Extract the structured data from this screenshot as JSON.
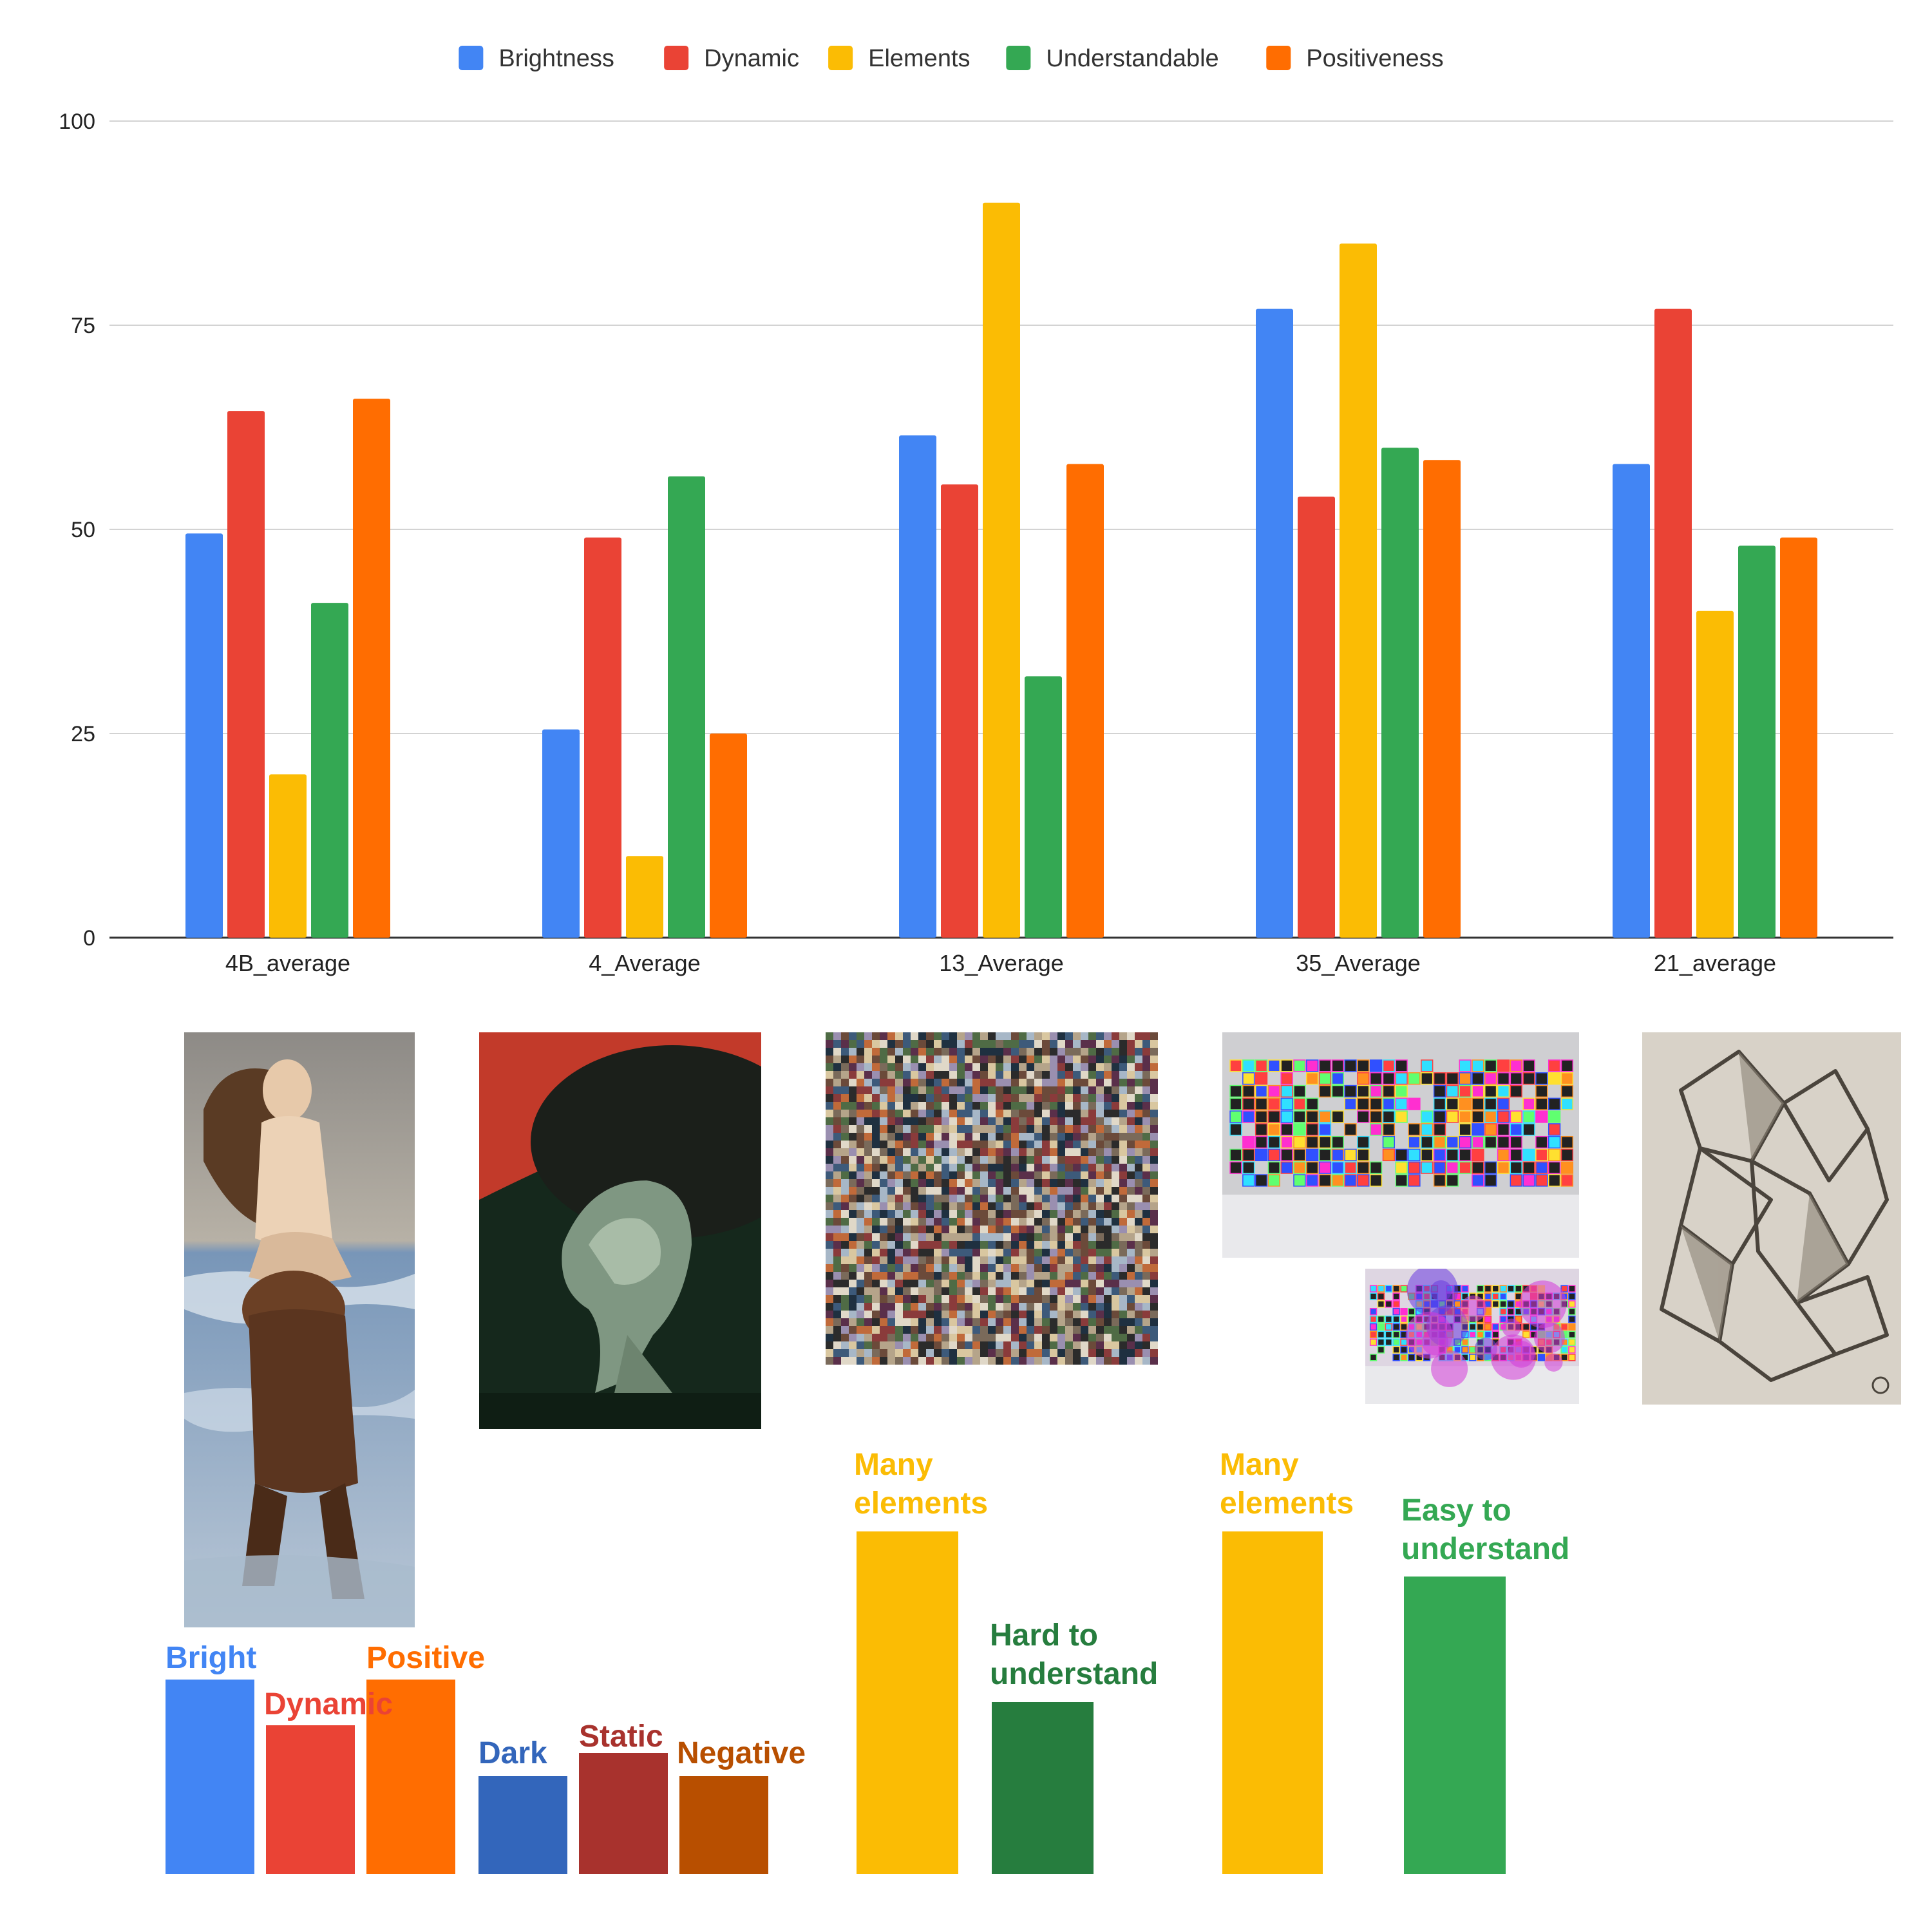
{
  "chart_data": {
    "type": "bar",
    "categories": [
      "4B_average",
      "4_Average",
      "13_Average",
      "35_Average",
      "21_average"
    ],
    "series": [
      {
        "name": "Brightness",
        "color": "#4285f4",
        "values": [
          49.5,
          25.5,
          61.5,
          77.0,
          58.0
        ]
      },
      {
        "name": "Dynamic",
        "color": "#ea4335",
        "values": [
          64.5,
          49.0,
          55.5,
          54.0,
          77.0
        ]
      },
      {
        "name": "Elements",
        "color": "#fbbc04",
        "values": [
          20.0,
          10.0,
          90.0,
          85.0,
          40.0
        ]
      },
      {
        "name": "Understandable",
        "color": "#34a853",
        "values": [
          41.0,
          56.5,
          32.0,
          60.0,
          48.0
        ]
      },
      {
        "name": "Positiveness",
        "color": "#ff6d01",
        "values": [
          66.0,
          25.0,
          58.0,
          58.5,
          49.0
        ]
      }
    ],
    "yticks": [
      "0",
      "25",
      "50",
      "75",
      "100"
    ],
    "ylim": [
      0,
      100
    ],
    "grid": true,
    "legend": "top"
  },
  "artworks": [
    {
      "name": "sea-creature-carrying-woman-painting"
    },
    {
      "name": "man-pushing-boulder-painting"
    },
    {
      "name": "digital-collage-mosaic"
    },
    {
      "name": "neon-map-installation-photo"
    },
    {
      "name": "neon-map-installation-overlay-photo"
    },
    {
      "name": "cubist-figures-drawing"
    }
  ],
  "illustrations": [
    {
      "label": "Bright",
      "color": "#4285f4"
    },
    {
      "label": "Dynamic",
      "color": "#ea4335"
    },
    {
      "label": "Positive",
      "color": "#ff6d01"
    },
    {
      "label": "Dark",
      "color": "#3366bb"
    },
    {
      "label": "Static",
      "color": "#a8322d"
    },
    {
      "label": "Negative",
      "color": "#b84f00"
    },
    {
      "label": "Many\nelements",
      "color": "#fbbc04"
    },
    {
      "label": "Hard to\nunderstand",
      "color": "#267d3e"
    },
    {
      "label": "Many\nelements",
      "color": "#fbbc04"
    },
    {
      "label": "Easy to\nunderstand",
      "color": "#34a853"
    }
  ]
}
